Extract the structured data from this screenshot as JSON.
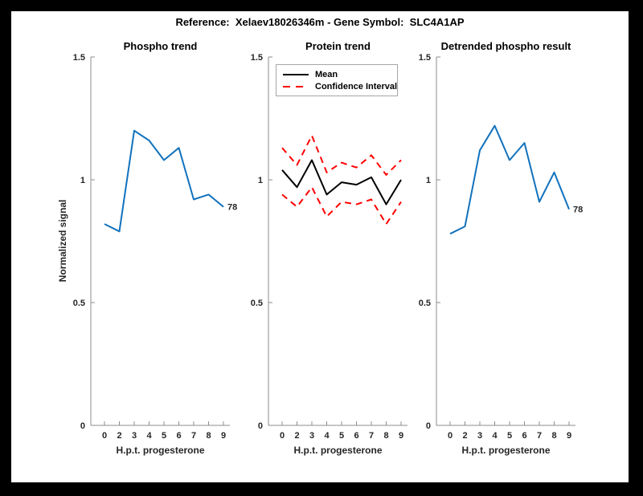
{
  "figure": {
    "title": "Reference:  Xelaev18026346m - Gene Symbol:  SLC4A1AP",
    "frame_color": "#000000",
    "canvas_color": "#ffffff"
  },
  "colors": {
    "blue": "#1272bd",
    "red": "#ff0000",
    "black": "#000000",
    "axis_line": "#8c8c8c",
    "tick_text": "#262626"
  },
  "legend": {
    "items": [
      {
        "label": "Mean",
        "style": "solid",
        "color": "#000000"
      },
      {
        "label": "Confidence Interval",
        "style": "dashed",
        "color": "#ff0000"
      }
    ]
  },
  "chart_data": [
    {
      "type": "line",
      "title": "Phospho trend",
      "xlabel": "H.p.t. progesterone",
      "ylabel": "Normalized signal",
      "x_labels": [
        "0",
        "2",
        "3",
        "4",
        "5",
        "6",
        "7",
        "8",
        "9"
      ],
      "ylim": [
        0,
        1.5
      ],
      "yticks": [
        {
          "v": 0,
          "label": "0"
        },
        {
          "v": 0.5,
          "label": "0.5"
        },
        {
          "v": 1,
          "label": "1"
        },
        {
          "v": 1.5,
          "label": "1.5"
        }
      ],
      "grid": false,
      "legend_position": "none",
      "series": [
        {
          "name": "phospho-signal",
          "color": "blue",
          "style": "solid",
          "values": [
            0.82,
            0.79,
            1.2,
            1.16,
            1.08,
            1.13,
            0.92,
            0.94,
            0.89
          ],
          "end_label": "78"
        }
      ]
    },
    {
      "type": "line",
      "title": "Protein trend",
      "xlabel": "H.p.t. progesterone",
      "ylabel": "",
      "x_labels": [
        "0",
        "2",
        "3",
        "4",
        "5",
        "6",
        "7",
        "8",
        "9"
      ],
      "ylim": [
        0,
        1.5
      ],
      "yticks": [
        {
          "v": 0,
          "label": "0"
        },
        {
          "v": 0.5,
          "label": "0.5"
        },
        {
          "v": 1,
          "label": "1"
        },
        {
          "v": 1.5,
          "label": "1.5"
        }
      ],
      "grid": false,
      "legend_position": "northwest",
      "series": [
        {
          "name": "mean",
          "color": "black",
          "style": "solid",
          "values": [
            1.04,
            0.97,
            1.08,
            0.94,
            0.99,
            0.98,
            1.01,
            0.9,
            1.0
          ],
          "end_label": ""
        },
        {
          "name": "confidence-upper",
          "color": "red",
          "style": "dashed",
          "values": [
            1.13,
            1.06,
            1.18,
            1.03,
            1.07,
            1.05,
            1.1,
            1.02,
            1.08
          ],
          "end_label": ""
        },
        {
          "name": "confidence-lower",
          "color": "red",
          "style": "dashed",
          "values": [
            0.94,
            0.89,
            0.97,
            0.85,
            0.91,
            0.9,
            0.92,
            0.82,
            0.91
          ],
          "end_label": ""
        }
      ]
    },
    {
      "type": "line",
      "title": "Detrended phospho result",
      "xlabel": "H.p.t. progesterone",
      "ylabel": "",
      "x_labels": [
        "0",
        "2",
        "3",
        "4",
        "5",
        "6",
        "7",
        "8",
        "9"
      ],
      "ylim": [
        0,
        1.5
      ],
      "yticks": [
        {
          "v": 0,
          "label": "0"
        },
        {
          "v": 0.5,
          "label": "0.5"
        },
        {
          "v": 1,
          "label": "1"
        },
        {
          "v": 1.5,
          "label": "1.5"
        }
      ],
      "grid": false,
      "legend_position": "none",
      "series": [
        {
          "name": "detrended-phospho-signal",
          "color": "blue",
          "style": "solid",
          "values": [
            0.78,
            0.81,
            1.12,
            1.22,
            1.08,
            1.15,
            0.91,
            1.03,
            0.88
          ],
          "end_label": "78"
        }
      ]
    }
  ]
}
